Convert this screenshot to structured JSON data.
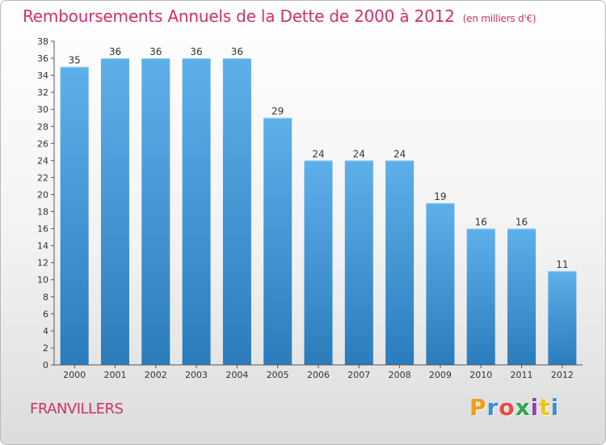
{
  "header": {
    "title": "Remboursements Annuels de la Dette de 2000 à 2012",
    "subtitle": "(en milliers d'€)"
  },
  "footer": {
    "commune": "FRANVILLERS",
    "logo_text": "Proxiti",
    "logo_colors": [
      "#f39c12",
      "#3d8fd4",
      "#e84c3d",
      "#2ea84c",
      "#8e44ad",
      "#f1c40f",
      "#3d8fd4"
    ]
  },
  "colors": {
    "bar_light": "#5eb0ea",
    "bar_dark": "#2a7cbc",
    "title": "#d0306a",
    "axis": "#555555"
  },
  "chart_data": {
    "type": "bar",
    "title": "Remboursements Annuels de la Dette de 2000 à 2012",
    "subtitle": "(en milliers d'€)",
    "categories": [
      "2000",
      "2001",
      "2002",
      "2003",
      "2004",
      "2005",
      "2006",
      "2007",
      "2008",
      "2009",
      "2010",
      "2011",
      "2012"
    ],
    "values": [
      35,
      36,
      36,
      36,
      36,
      29,
      24,
      24,
      24,
      19,
      16,
      16,
      11
    ],
    "xlabel": "",
    "ylabel": "",
    "ylim": [
      0,
      38
    ],
    "yticks": [
      0,
      2,
      4,
      6,
      8,
      10,
      12,
      14,
      16,
      18,
      20,
      22,
      24,
      26,
      28,
      30,
      32,
      34,
      36,
      38
    ],
    "grid": false,
    "data_labels": true
  }
}
